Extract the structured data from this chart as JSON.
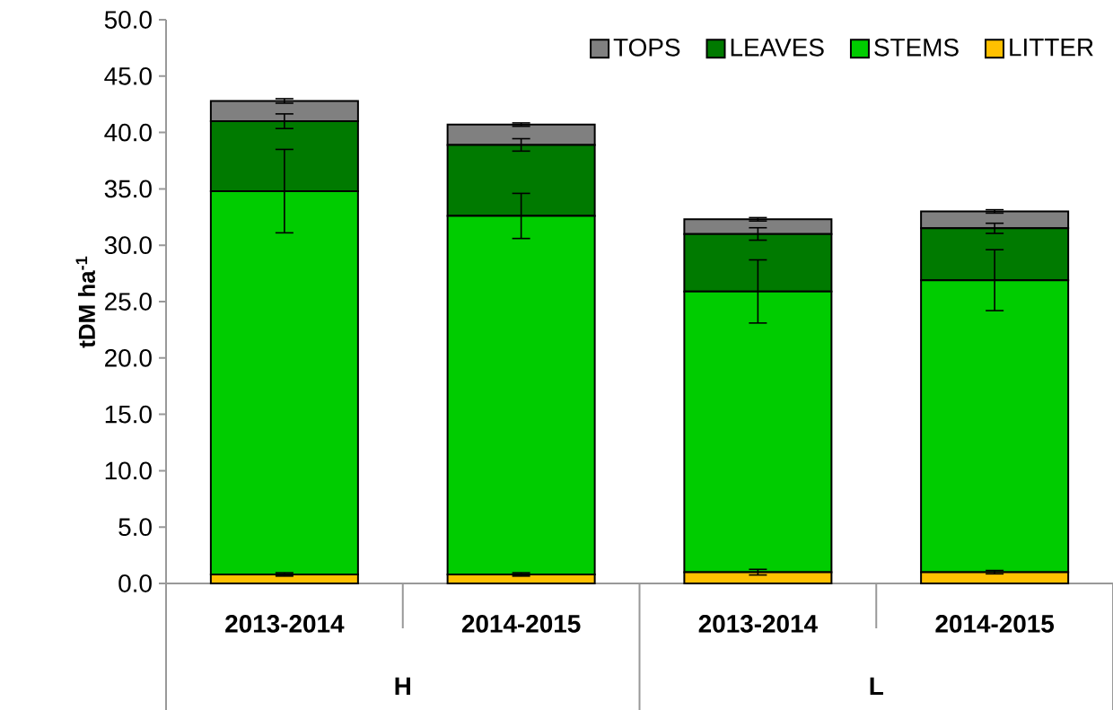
{
  "chart_data": {
    "type": "bar",
    "stacked": true,
    "ylabel": "tDM ha$^{-1}$",
    "categories": [
      "2013-2014",
      "2014-2015",
      "2013-2014",
      "2014-2015"
    ],
    "annotations": [
      "H",
      "L"
    ],
    "series": [
      {
        "name": "LITTER",
        "color": "#ffc000",
        "values": [
          0.8,
          0.8,
          1.0,
          1.0
        ],
        "errors": [
          0.15,
          0.15,
          0.25,
          0.15
        ]
      },
      {
        "name": "STEMS",
        "color": "#00cc00",
        "values": [
          34.0,
          31.8,
          24.9,
          25.9
        ],
        "errors": [
          3.7,
          2.0,
          2.8,
          2.7
        ]
      },
      {
        "name": "LEAVES",
        "color": "#007a00",
        "values": [
          6.2,
          6.3,
          5.1,
          4.6
        ],
        "errors": [
          0.65,
          0.55,
          0.55,
          0.45
        ]
      },
      {
        "name": "TOPS",
        "color": "#808080",
        "values": [
          1.8,
          1.8,
          1.3,
          1.5
        ],
        "errors": [
          0.2,
          0.15,
          0.15,
          0.15
        ]
      }
    ],
    "ylim": [
      0,
      50
    ],
    "yticks": [
      {
        "value": 0,
        "label": "0.0"
      },
      {
        "value": 5,
        "label": "5.0"
      },
      {
        "value": 10,
        "label": "10.0"
      },
      {
        "value": 15,
        "label": "15.0"
      },
      {
        "value": 20,
        "label": "20.0"
      },
      {
        "value": 25,
        "label": "25.0"
      },
      {
        "value": 30,
        "label": "30.0"
      },
      {
        "value": 35,
        "label": "35.0"
      },
      {
        "value": 40,
        "label": "40.0"
      },
      {
        "value": 45,
        "label": "45.0"
      },
      {
        "value": 50,
        "label": "50.0"
      }
    ],
    "grid": false,
    "legend": "top right"
  }
}
